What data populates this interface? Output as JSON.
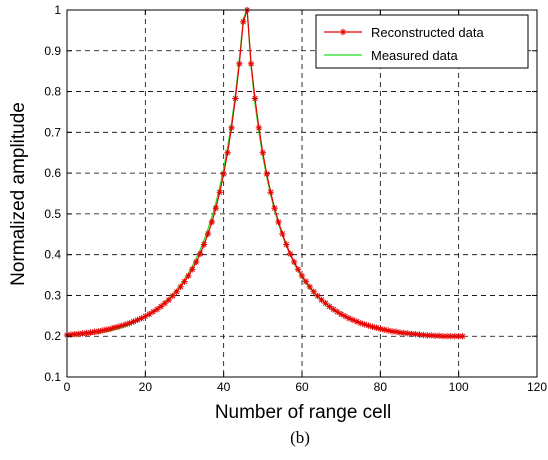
{
  "chart_data": {
    "type": "line",
    "xlabel": "Number of range cell",
    "ylabel": "Normalized amplitude",
    "caption": "(b)",
    "xlim": [
      0,
      120
    ],
    "ylim": [
      0.1,
      1
    ],
    "xticks": [
      "0",
      "20",
      "40",
      "60",
      "80",
      "100",
      "120"
    ],
    "yticks": [
      "0.1",
      "0.2",
      "0.3",
      "0.4",
      "0.5",
      "0.6",
      "0.7",
      "0.8",
      "0.9",
      "1"
    ],
    "grid": true,
    "legend_position": "top-right",
    "series": [
      {
        "name": "Reconstructed data",
        "color": "#e60000",
        "marker": "asterisk",
        "x": [
          0,
          1,
          2,
          3,
          4,
          5,
          6,
          7,
          8,
          9,
          10,
          11,
          12,
          13,
          14,
          15,
          16,
          17,
          18,
          19,
          20,
          21,
          22,
          23,
          24,
          25,
          26,
          27,
          28,
          29,
          30,
          31,
          32,
          33,
          34,
          35,
          36,
          37,
          38,
          39,
          40,
          41,
          42,
          43,
          44,
          45,
          46,
          47,
          48,
          49,
          50,
          51,
          52,
          53,
          54,
          55,
          56,
          57,
          58,
          59,
          60,
          61,
          62,
          63,
          64,
          65,
          66,
          67,
          68,
          69,
          70,
          71,
          72,
          73,
          74,
          75,
          76,
          77,
          78,
          79,
          80,
          81,
          82,
          83,
          84,
          85,
          86,
          87,
          88,
          89,
          90,
          91,
          92,
          93,
          94,
          95,
          96,
          97,
          98,
          99,
          100,
          101
        ],
        "values": [
          0.203,
          0.204,
          0.205,
          0.206,
          0.207,
          0.208,
          0.209,
          0.211,
          0.212,
          0.214,
          0.216,
          0.218,
          0.221,
          0.223,
          0.226,
          0.229,
          0.232,
          0.236,
          0.24,
          0.244,
          0.249,
          0.254,
          0.26,
          0.266,
          0.273,
          0.281,
          0.289,
          0.299,
          0.309,
          0.321,
          0.334,
          0.348,
          0.364,
          0.382,
          0.402,
          0.425,
          0.451,
          0.48,
          0.514,
          0.553,
          0.598,
          0.65,
          0.711,
          0.783,
          0.868,
          0.971,
          1.0,
          0.868,
          0.783,
          0.711,
          0.65,
          0.598,
          0.553,
          0.514,
          0.48,
          0.451,
          0.425,
          0.402,
          0.382,
          0.364,
          0.348,
          0.334,
          0.321,
          0.309,
          0.299,
          0.289,
          0.281,
          0.273,
          0.266,
          0.26,
          0.254,
          0.249,
          0.244,
          0.24,
          0.236,
          0.232,
          0.229,
          0.226,
          0.223,
          0.221,
          0.218,
          0.216,
          0.214,
          0.212,
          0.211,
          0.209,
          0.208,
          0.207,
          0.206,
          0.205,
          0.204,
          0.203,
          0.202,
          0.202,
          0.201,
          0.201,
          0.2,
          0.2,
          0.2,
          0.2,
          0.2,
          0.2
        ]
      },
      {
        "name": "Measured data",
        "color": "#22dd22",
        "marker": "none",
        "x": [
          0,
          1,
          2,
          3,
          4,
          5,
          6,
          7,
          8,
          9,
          10,
          11,
          12,
          13,
          14,
          15,
          16,
          17,
          18,
          19,
          20,
          21,
          22,
          23,
          24,
          25,
          26,
          27,
          28,
          29,
          30,
          31,
          32,
          33,
          34,
          35,
          36,
          37,
          38,
          39,
          40,
          41,
          42,
          43,
          44,
          45,
          46,
          47,
          48,
          49,
          50,
          51,
          52,
          53,
          54,
          55,
          56,
          57,
          58,
          59,
          60,
          61,
          62,
          63,
          64,
          65,
          66,
          67,
          68,
          69,
          70,
          71,
          72,
          73,
          74,
          75,
          76,
          77,
          78,
          79,
          80,
          81,
          82,
          83,
          84,
          85,
          86,
          87,
          88,
          89,
          90,
          91,
          92,
          93,
          94,
          95,
          96,
          97,
          98,
          99,
          100,
          101
        ],
        "values": [
          0.2,
          0.2,
          0.201,
          0.201,
          0.202,
          0.203,
          0.204,
          0.205,
          0.207,
          0.209,
          0.211,
          0.213,
          0.216,
          0.219,
          0.222,
          0.225,
          0.229,
          0.233,
          0.238,
          0.243,
          0.248,
          0.254,
          0.26,
          0.267,
          0.275,
          0.283,
          0.292,
          0.302,
          0.313,
          0.326,
          0.34,
          0.355,
          0.372,
          0.391,
          0.412,
          0.436,
          0.463,
          0.493,
          0.527,
          0.566,
          0.611,
          0.663,
          0.723,
          0.794,
          0.878,
          0.979,
          1.0,
          0.86,
          0.77,
          0.7,
          0.64,
          0.59,
          0.546,
          0.508,
          0.476,
          0.447,
          0.421,
          0.399,
          0.378,
          0.36,
          0.344,
          0.33,
          0.318,
          0.307,
          0.297,
          0.288,
          0.28,
          0.272,
          0.265,
          0.259,
          0.253,
          0.248,
          0.243,
          0.239,
          0.235,
          0.231,
          0.228,
          0.225,
          0.222,
          0.22,
          0.217,
          0.215,
          0.213,
          0.211,
          0.21,
          0.208,
          0.207,
          0.206,
          0.205,
          0.204,
          0.203,
          0.202,
          0.202,
          0.201,
          0.201,
          0.2,
          0.2,
          0.2,
          0.2,
          0.199,
          0.199,
          0.199
        ]
      }
    ]
  }
}
